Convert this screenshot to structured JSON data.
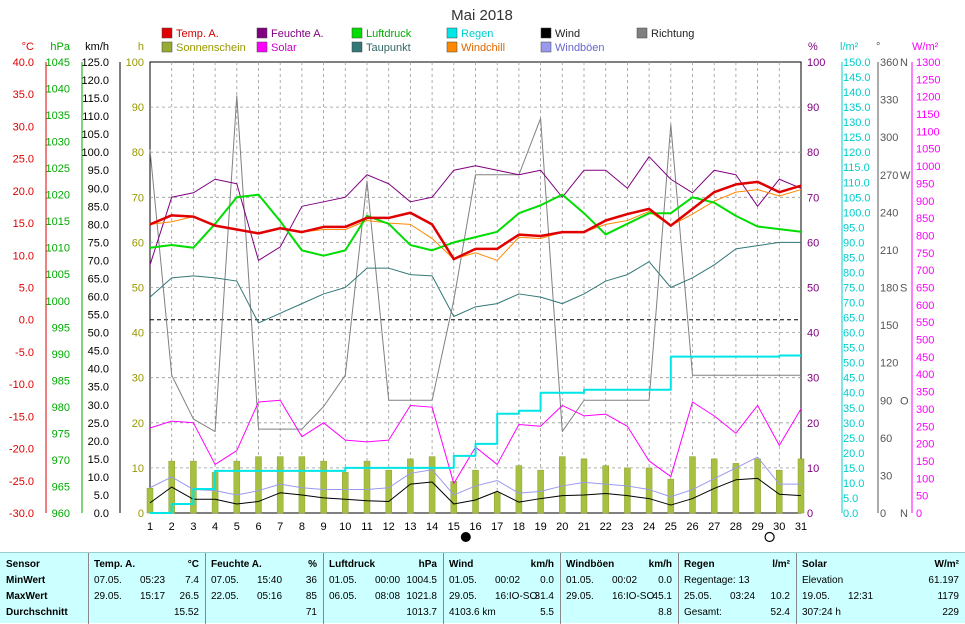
{
  "title": "Mai 2018",
  "legend": [
    {
      "label": "Temp. A.",
      "color": "#e00000"
    },
    {
      "label": "Feuchte A.",
      "color": "#800080"
    },
    {
      "label": "Luftdruck",
      "color": "#00dd00"
    },
    {
      "label": "Regen",
      "color": "#00e6e6"
    },
    {
      "label": "Wind",
      "color": "#000000"
    },
    {
      "label": "Richtung",
      "color": "#808080"
    },
    {
      "label": "Sonnenschein",
      "color": "#99aa33"
    },
    {
      "label": "Solar",
      "color": "#ff00ff"
    },
    {
      "label": "Taupunkt",
      "color": "#337777"
    },
    {
      "label": "Windchill",
      "color": "#ff8800"
    },
    {
      "label": "Windböen",
      "color": "#9999ee"
    }
  ],
  "axes_units": {
    "temp": "°C",
    "pressure": "hPa",
    "wind": "km/h",
    "sun": "h",
    "humidity": "%",
    "rain": "l/m²",
    "direction": "°",
    "solar": "W/m²"
  },
  "compass": [
    {
      "label": "N",
      "deg": 360
    },
    {
      "label": "W",
      "deg": 270
    },
    {
      "label": "S",
      "deg": 180
    },
    {
      "label": "O",
      "deg": 90
    },
    {
      "label": "N",
      "deg": 0
    }
  ],
  "chart_data": {
    "type": "line",
    "x": [
      1,
      2,
      3,
      4,
      5,
      6,
      7,
      8,
      9,
      10,
      11,
      12,
      13,
      14,
      15,
      16,
      17,
      18,
      19,
      20,
      21,
      22,
      23,
      24,
      25,
      26,
      27,
      28,
      29,
      30,
      31
    ],
    "axes": {
      "temp_c": [
        -30,
        40
      ],
      "pressure_hpa": [
        960,
        1045
      ],
      "wind_kmh": [
        0,
        125
      ],
      "sunshine_h": [
        0,
        100
      ],
      "humidity_pct": [
        0,
        100
      ],
      "rain_lm2": [
        0,
        150
      ],
      "direction_deg": [
        0,
        360
      ],
      "solar_wm2": [
        0,
        1300
      ]
    },
    "series": [
      {
        "name": "Temp. A.",
        "axis": "temp_c",
        "values": [
          14.8,
          16.2,
          16.0,
          14.6,
          14.0,
          13.4,
          14.2,
          13.6,
          14.4,
          14.4,
          15.8,
          15.8,
          16.6,
          14.8,
          9.4,
          11.0,
          11.0,
          13.2,
          13.0,
          13.6,
          13.6,
          15.4,
          16.4,
          17.2,
          14.6,
          17.2,
          19.8,
          21.0,
          21.4,
          19.8,
          20.8
        ]
      },
      {
        "name": "Feuchte A.",
        "axis": "humidity_pct",
        "values": [
          55,
          70,
          71,
          74,
          73,
          56,
          59,
          68,
          69,
          70,
          75,
          73,
          69,
          70,
          76,
          77,
          76,
          75,
          76,
          70,
          76,
          76,
          72,
          79,
          74,
          71,
          76,
          75,
          68,
          74,
          72
        ]
      },
      {
        "name": "Luftdruck",
        "axis": "pressure_hpa",
        "values": [
          1010.0,
          1010.5,
          1010.0,
          1014.5,
          1019.5,
          1020.0,
          1015.0,
          1009.5,
          1008.5,
          1009.5,
          1016.0,
          1014.5,
          1010.5,
          1009.5,
          1011.0,
          1012.0,
          1013.0,
          1016.5,
          1018.0,
          1020.0,
          1016.5,
          1012.5,
          1014.5,
          1016.5,
          1016.5,
          1019.5,
          1018.5,
          1016.0,
          1014.0,
          1013.5,
          1013.0
        ]
      },
      {
        "name": "Taupunkt",
        "axis": "temp_c",
        "values": [
          3.5,
          6.5,
          6.8,
          6.5,
          6.0,
          -0.5,
          1.0,
          2.5,
          4.0,
          5.0,
          8.0,
          8.0,
          7.0,
          6.8,
          0.5,
          2.0,
          2.5,
          4.0,
          3.5,
          2.5,
          4.0,
          6.0,
          7.0,
          9.0,
          5.0,
          6.5,
          8.5,
          11.0,
          11.5,
          12.0,
          12.0
        ]
      },
      {
        "name": "Windchill",
        "axis": "temp_c",
        "values": [
          14.8,
          15.2,
          16.0,
          14.6,
          14.0,
          13.4,
          14.2,
          13.6,
          14.0,
          14.0,
          15.4,
          15.0,
          14.8,
          12.6,
          9.4,
          10.4,
          9.2,
          12.8,
          12.6,
          13.6,
          13.6,
          14.8,
          15.4,
          16.8,
          14.6,
          16.4,
          18.4,
          19.8,
          20.2,
          19.2,
          20.2
        ]
      },
      {
        "name": "Wind",
        "axis": "wind_kmh",
        "values": [
          2.8,
          7.2,
          3.8,
          3.8,
          2.5,
          3.2,
          5.6,
          5.0,
          4.2,
          3.8,
          3.4,
          3.2,
          8.0,
          8.6,
          2.5,
          3.6,
          6.0,
          3.0,
          4.0,
          4.8,
          5.0,
          5.4,
          4.8,
          4.0,
          2.2,
          4.0,
          6.8,
          9.2,
          9.6,
          5.2,
          4.8
        ]
      },
      {
        "name": "Windböen",
        "axis": "wind_kmh",
        "values": [
          7.0,
          10.0,
          6.5,
          6.2,
          5.0,
          6.2,
          8.0,
          7.0,
          6.5,
          6.5,
          6.5,
          7.0,
          11.0,
          12.0,
          5.0,
          7.5,
          9.0,
          5.5,
          6.0,
          7.5,
          8.5,
          8.0,
          7.5,
          6.5,
          4.5,
          6.5,
          9.5,
          12.5,
          15.5,
          8.0,
          8.0
        ]
      },
      {
        "name": "Richtung",
        "axis": "direction_deg",
        "values": [
          290,
          110,
          75,
          65,
          333,
          67,
          67,
          67,
          85,
          110,
          265,
          90,
          90,
          90,
          170,
          270,
          270,
          270,
          315,
          65,
          90,
          90,
          90,
          90,
          310,
          110,
          110,
          110,
          110,
          110,
          110
        ]
      },
      {
        "name": "Regen",
        "axis": "rain_lm2",
        "values": [
          0,
          3,
          8,
          14,
          14,
          14,
          14,
          14,
          14,
          15,
          15,
          15,
          15,
          15,
          19,
          23,
          33,
          34,
          40,
          40,
          41,
          41,
          41,
          41,
          52,
          52,
          52,
          52,
          52,
          52.4,
          52.4
        ]
      },
      {
        "name": "Solar",
        "axis": "solar_wm2",
        "values": [
          245,
          265,
          260,
          140,
          180,
          320,
          325,
          220,
          260,
          210,
          205,
          210,
          310,
          305,
          85,
          190,
          140,
          255,
          250,
          310,
          280,
          285,
          250,
          150,
          105,
          320,
          280,
          230,
          310,
          195,
          300
        ]
      },
      {
        "name": "Sonnenschein",
        "axis": "sunshine_h",
        "type": "bar",
        "values": [
          5.5,
          11.5,
          11.5,
          9.0,
          11.5,
          12.5,
          12.5,
          12.5,
          11.5,
          9.0,
          11.5,
          9.5,
          12.0,
          12.5,
          7.0,
          9.5,
          4.5,
          10.5,
          9.5,
          12.5,
          12.0,
          10.5,
          10.0,
          10.0,
          7.5,
          12.5,
          12.0,
          11.0,
          12.0,
          9.5,
          12.0
        ]
      }
    ],
    "moon_markers": [
      {
        "day": 15,
        "phase": "new"
      },
      {
        "day": 29,
        "phase": "full"
      }
    ],
    "freezing_line_c": 0
  },
  "stats": {
    "columns": [
      {
        "title": "Sensor",
        "unit": "",
        "rows": [
          [
            "MinWert",
            "",
            ""
          ],
          [
            "MaxWert",
            "",
            ""
          ],
          [
            "Durchschnitt",
            "",
            ""
          ]
        ]
      },
      {
        "title": "Temp. A.",
        "unit": "°C",
        "rows": [
          [
            "07.05.",
            "05:23",
            "7.4"
          ],
          [
            "29.05.",
            "15:17",
            "26.5"
          ],
          [
            "",
            "",
            "15.52"
          ]
        ]
      },
      {
        "title": "Feuchte A.",
        "unit": "%",
        "rows": [
          [
            "07.05.",
            "15:40",
            "36"
          ],
          [
            "22.05.",
            "05:16",
            "85"
          ],
          [
            "",
            "",
            "71"
          ]
        ]
      },
      {
        "title": "Luftdruck",
        "unit": "hPa",
        "rows": [
          [
            "01.05.",
            "00:00",
            "1004.5"
          ],
          [
            "06.05.",
            "08:08",
            "1021.8"
          ],
          [
            "",
            "",
            "1013.7"
          ]
        ]
      },
      {
        "title": "Wind",
        "unit": "km/h",
        "rows": [
          [
            "01.05.",
            "00:02",
            "0.0"
          ],
          [
            "29.05.",
            "16:IO-SO",
            "31.4"
          ],
          [
            "4103.6 km",
            "",
            "5.5"
          ]
        ]
      },
      {
        "title": "Windböen",
        "unit": "km/h",
        "rows": [
          [
            "01.05.",
            "00:02",
            "0.0"
          ],
          [
            "29.05.",
            "16:IO-SO",
            "45.1"
          ],
          [
            "",
            "",
            "8.8"
          ]
        ]
      },
      {
        "title": "Regen",
        "unit": "l/m²",
        "rows": [
          [
            "Regentage: 13",
            "",
            ""
          ],
          [
            "25.05.",
            "03:24",
            "10.2"
          ],
          [
            "Gesamt:",
            "",
            "52.4"
          ]
        ]
      },
      {
        "title": "Solar",
        "unit": "W/m²",
        "rows": [
          [
            "Elevation",
            "",
            "61.197"
          ],
          [
            "19.05.",
            "12:31",
            "1179"
          ],
          [
            "307:24 h",
            "",
            "229"
          ]
        ]
      }
    ]
  }
}
